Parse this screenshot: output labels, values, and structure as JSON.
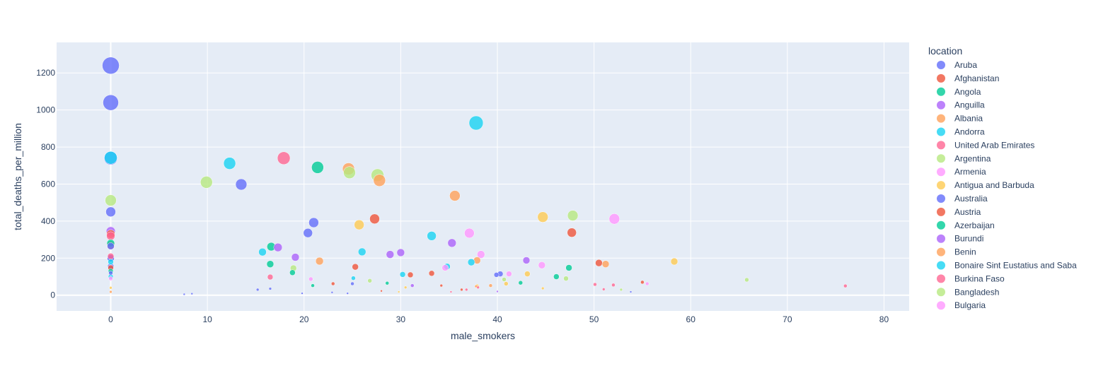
{
  "chart_data": {
    "type": "scatter",
    "xlabel": "male_smokers",
    "ylabel": "total_deaths_per_million",
    "xlim": [
      -5.6,
      82.6
    ],
    "ylim": [
      -85,
      1365
    ],
    "xticks": [
      0,
      10,
      20,
      30,
      40,
      50,
      60,
      70,
      80
    ],
    "yticks": [
      0,
      200,
      400,
      600,
      800,
      1000,
      1200
    ],
    "grid": true,
    "legend": {
      "title": "location",
      "position": "right"
    },
    "series": [
      {
        "name": "Aruba",
        "color": "#636efa",
        "points": [
          [
            0,
            1240,
            22
          ],
          [
            0,
            1040,
            20
          ],
          [
            0,
            740,
            17
          ],
          [
            0,
            450,
            12
          ],
          [
            0,
            265,
            8
          ],
          [
            0,
            200,
            8
          ],
          [
            0,
            155,
            7
          ],
          [
            0,
            120,
            4
          ],
          [
            13.5,
            598,
            14
          ],
          [
            20.4,
            336,
            11
          ],
          [
            21,
            392,
            12
          ],
          [
            25,
            62,
            3
          ],
          [
            16.5,
            35,
            2
          ],
          [
            40.3,
            115,
            6
          ],
          [
            39.9,
            110,
            5
          ],
          [
            8.4,
            8,
            1
          ],
          [
            15.2,
            30,
            2
          ],
          [
            19.8,
            10,
            1
          ],
          [
            22.9,
            15,
            1
          ],
          [
            24.5,
            10,
            1
          ],
          [
            53.8,
            18,
            1
          ]
        ]
      },
      {
        "name": "Afghanistan",
        "color": "#EF553B",
        "points": [
          [
            0,
            330,
            10
          ],
          [
            27.3,
            412,
            12
          ],
          [
            47.7,
            338,
            11
          ],
          [
            25.3,
            153,
            7
          ],
          [
            31,
            110,
            6
          ],
          [
            33.2,
            118,
            6
          ],
          [
            50.5,
            174,
            8
          ],
          [
            23,
            62,
            3
          ],
          [
            34.2,
            52,
            2
          ],
          [
            36.3,
            30,
            2
          ],
          [
            55,
            70,
            3
          ],
          [
            0,
            270,
            9
          ],
          [
            0,
            148,
            6
          ],
          [
            28,
            23,
            1
          ]
        ]
      },
      {
        "name": "Angola",
        "color": "#00cc96",
        "points": [
          [
            21.4,
            690,
            15
          ],
          [
            16.6,
            262,
            10
          ],
          [
            16.5,
            168,
            8
          ],
          [
            18.8,
            122,
            6
          ],
          [
            46.1,
            100,
            6
          ],
          [
            47.4,
            148,
            7
          ],
          [
            42.4,
            67,
            4
          ],
          [
            20.9,
            52,
            3
          ],
          [
            28.6,
            65,
            3
          ],
          [
            0,
            280,
            9
          ],
          [
            0,
            130,
            5
          ]
        ]
      },
      {
        "name": "Anguilla",
        "color": "#ab63fa",
        "points": []
      },
      {
        "name": "Albania",
        "color": "#FFA15A",
        "points": [
          [
            24.6,
            682,
            15
          ],
          [
            27.8,
            620,
            15
          ],
          [
            35.6,
            537,
            13
          ],
          [
            21.6,
            184,
            9
          ],
          [
            37.9,
            188,
            8
          ],
          [
            51.2,
            168,
            8
          ],
          [
            0,
            18,
            2
          ],
          [
            39.3,
            52,
            3
          ],
          [
            37.8,
            48,
            2
          ]
        ]
      },
      {
        "name": "Andorra",
        "color": "#19d3f3",
        "points": [
          [
            37.8,
            930,
            18
          ],
          [
            12.3,
            712,
            15
          ],
          [
            0,
            742,
            16
          ],
          [
            33.2,
            320,
            11
          ],
          [
            15.7,
            233,
            9
          ],
          [
            26,
            234,
            9
          ],
          [
            37.3,
            178,
            8
          ],
          [
            34.8,
            155,
            7
          ],
          [
            30.2,
            112,
            6
          ],
          [
            25.1,
            92,
            4
          ],
          [
            0,
            100,
            5
          ],
          [
            0,
            180,
            6
          ]
        ]
      },
      {
        "name": "United Arab Emirates",
        "color": "#FF6692",
        "points": [
          [
            17.9,
            740,
            16
          ],
          [
            0,
            320,
            10
          ],
          [
            16.5,
            98,
            6
          ],
          [
            38,
            42,
            2
          ],
          [
            50.1,
            58,
            3
          ],
          [
            52,
            55,
            3
          ],
          [
            51,
            32,
            2
          ],
          [
            76,
            50,
            3
          ],
          [
            36.8,
            30,
            2
          ],
          [
            35.2,
            18,
            1
          ],
          [
            0,
            210,
            7
          ]
        ]
      },
      {
        "name": "Argentina",
        "color": "#B6E880",
        "points": [
          [
            27.6,
            648,
            16
          ],
          [
            24.7,
            662,
            15
          ],
          [
            9.9,
            610,
            15
          ],
          [
            0,
            512,
            14
          ],
          [
            47.8,
            430,
            13
          ],
          [
            18.9,
            146,
            7
          ],
          [
            26.8,
            78,
            4
          ],
          [
            47.1,
            90,
            5
          ],
          [
            65.8,
            83,
            4
          ],
          [
            40.7,
            85,
            4
          ],
          [
            52.8,
            30,
            2
          ]
        ]
      },
      {
        "name": "Armenia",
        "color": "#FF97FF",
        "points": [
          [
            52.1,
            412,
            13
          ],
          [
            37.1,
            335,
            12
          ],
          [
            38.3,
            220,
            9
          ],
          [
            44.6,
            162,
            8
          ],
          [
            41.2,
            115,
            6
          ],
          [
            34.6,
            148,
            7
          ],
          [
            20.7,
            87,
            4
          ],
          [
            55.5,
            62,
            3
          ],
          [
            0,
            90,
            4
          ]
        ]
      },
      {
        "name": "Antigua and Barbuda",
        "color": "#FECB52",
        "points": [
          [
            58.3,
            182,
            8
          ],
          [
            44.7,
            422,
            13
          ],
          [
            25.7,
            380,
            12
          ],
          [
            43.1,
            115,
            6
          ],
          [
            40.9,
            62,
            4
          ],
          [
            30.5,
            42,
            2
          ],
          [
            37.9,
            50,
            3
          ],
          [
            44.7,
            37,
            2
          ],
          [
            0,
            40,
            2
          ],
          [
            29.8,
            18,
            1
          ]
        ]
      },
      {
        "name": "Australia",
        "color": "#636efa",
        "points": [
          [
            0,
            200,
            8
          ],
          [
            7.6,
            5,
            1
          ]
        ]
      },
      {
        "name": "Austria",
        "color": "#EF553B",
        "points": []
      },
      {
        "name": "Azerbaijan",
        "color": "#00cc96",
        "points": []
      },
      {
        "name": "Burundi",
        "color": "#ab63fa",
        "points": [
          [
            0,
            345,
            11
          ],
          [
            17.3,
            258,
            10
          ],
          [
            19.1,
            205,
            9
          ],
          [
            28.9,
            220,
            9
          ],
          [
            30,
            230,
            9
          ],
          [
            35.3,
            282,
            10
          ],
          [
            43,
            188,
            8
          ],
          [
            31.2,
            52,
            3
          ],
          [
            40,
            20,
            1
          ]
        ]
      },
      {
        "name": "Benin",
        "color": "#FFA15A",
        "points": []
      },
      {
        "name": "Bonaire Sint Eustatius and Saba",
        "color": "#19d3f3",
        "points": []
      },
      {
        "name": "Burkina Faso",
        "color": "#FF6692",
        "points": []
      },
      {
        "name": "Bangladesh",
        "color": "#B6E880",
        "points": []
      },
      {
        "name": "Bulgaria",
        "color": "#FF97FF",
        "points": []
      }
    ]
  }
}
